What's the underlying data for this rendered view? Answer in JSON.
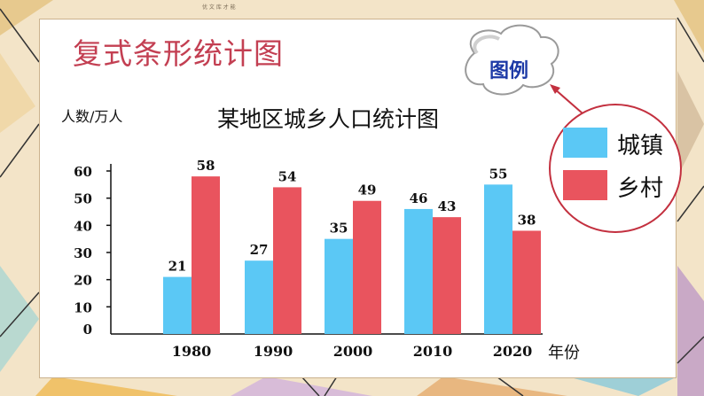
{
  "header": {
    "tiny_text": "优 文 库 才 能"
  },
  "slide_title": "复式条形统计图",
  "legend_title": "图例",
  "colors": {
    "town": "#5bc8f5",
    "village": "#e9545e",
    "title_red": "#c33f52",
    "legend_blue": "#1d3aa6"
  },
  "chart_data": {
    "type": "bar",
    "title": "某地区城乡人口统计图",
    "ylabel": "人数/万人",
    "xlabel": "年份",
    "categories": [
      "1980",
      "1990",
      "2000",
      "2010",
      "2020"
    ],
    "series": [
      {
        "name": "城镇",
        "values": [
          21,
          27,
          35,
          46,
          55
        ]
      },
      {
        "name": "乡村",
        "values": [
          58,
          54,
          49,
          43,
          38
        ]
      }
    ],
    "ylim": [
      0,
      60
    ],
    "yticks": [
      "0",
      "10",
      "20",
      "30",
      "40",
      "50",
      "60"
    ],
    "grid": false,
    "legend_position": "top-right"
  }
}
